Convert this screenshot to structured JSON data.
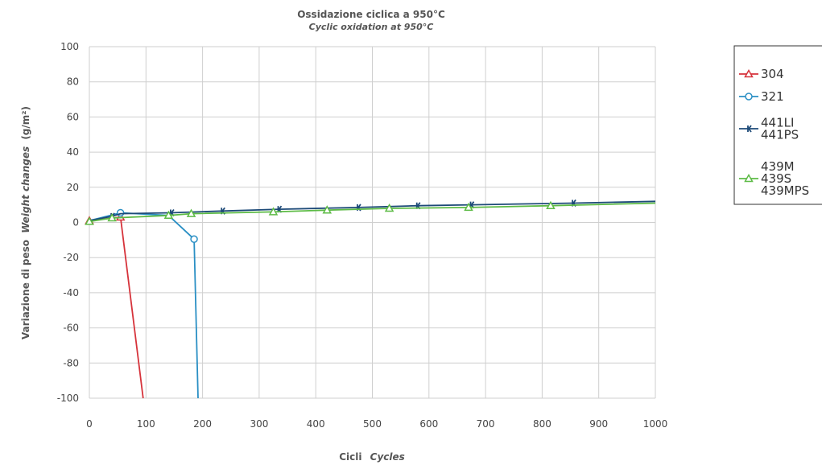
{
  "chart_data": {
    "type": "line",
    "title": "Ossidazione ciclica a 950°C",
    "subtitle": "Cyclic oxidation at 950°C",
    "xlabel": "Cicli",
    "xlabel_en": "Cycles",
    "ylabel": "Variazione di peso",
    "ylabel_en": "Weight changes",
    "ylabel_unit": "(g/m²)",
    "xlim": [
      0,
      1000
    ],
    "ylim": [
      -100,
      100
    ],
    "xticks": [
      0,
      100,
      200,
      300,
      400,
      500,
      600,
      700,
      800,
      900,
      1000
    ],
    "yticks": [
      100,
      80,
      60,
      40,
      20,
      0,
      -20,
      -40,
      -60,
      -80,
      -100
    ],
    "grid": true,
    "legend_position": "right",
    "series": [
      {
        "name": "304",
        "color": "#d6333b",
        "marker": "triangle",
        "x": [
          0,
          55,
          95
        ],
        "y": [
          1,
          3,
          -100
        ],
        "marker_index": [
          0,
          1
        ]
      },
      {
        "name": "321",
        "color": "#2a8fc4",
        "marker": "circle",
        "x": [
          0,
          55,
          140,
          185,
          192
        ],
        "y": [
          1,
          5.5,
          4,
          -9.5,
          -100
        ],
        "marker_index": [
          1,
          3
        ]
      },
      {
        "name": "441LI\n441PS",
        "color": "#1d4a78",
        "marker": "tick",
        "x": [
          0,
          40,
          55,
          145,
          235,
          335,
          475,
          580,
          675,
          855,
          1000
        ],
        "y": [
          1,
          3.5,
          5,
          5.5,
          6.5,
          7.5,
          8.5,
          9.5,
          10,
          11,
          12
        ],
        "marker_index": [
          1,
          3,
          4,
          5,
          6,
          7,
          8,
          9
        ]
      },
      {
        "name": "439M\n439S\n439MPS",
        "color": "#5dbb46",
        "marker": "triangle",
        "x": [
          0,
          40,
          140,
          180,
          325,
          420,
          530,
          670,
          815,
          1000
        ],
        "y": [
          0.5,
          2.5,
          4,
          5,
          6,
          7,
          8,
          8.5,
          9.5,
          11
        ],
        "marker_index": [
          0,
          1,
          2,
          3,
          4,
          5,
          6,
          7,
          8
        ]
      }
    ]
  }
}
